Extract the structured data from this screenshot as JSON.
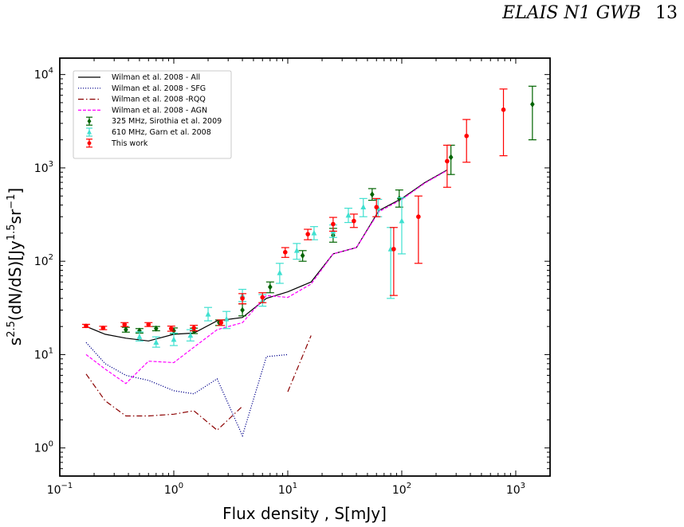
{
  "page": {
    "running_title": "ELAIS N1 GWB",
    "page_number": "13"
  },
  "chart_data": {
    "type": "scatter",
    "x_scale": "log",
    "y_scale": "log",
    "xlim": [
      0.1,
      2000
    ],
    "ylim": [
      0.5,
      15000
    ],
    "xlabel": "Flux density , S[mJy]",
    "ylabel_base": "s",
    "ylabel_exp": "2.5",
    "ylabel_rest": "(dN/dS)[Jy",
    "ylabel_exp2": "1.5",
    "ylabel_rest2": "sr",
    "ylabel_exp3": "−1",
    "ylabel_end": "]",
    "x_ticks": [
      {
        "value": 0.1,
        "base": "10",
        "exp": "−1"
      },
      {
        "value": 1,
        "base": "10",
        "exp": "0"
      },
      {
        "value": 10,
        "base": "10",
        "exp": "1"
      },
      {
        "value": 100,
        "base": "10",
        "exp": "2"
      },
      {
        "value": 1000,
        "base": "10",
        "exp": "3"
      }
    ],
    "y_ticks": [
      {
        "value": 1,
        "base": "10",
        "exp": "0"
      },
      {
        "value": 10,
        "base": "10",
        "exp": "1"
      },
      {
        "value": 100,
        "base": "10",
        "exp": "2"
      },
      {
        "value": 1000,
        "base": "10",
        "exp": "3"
      },
      {
        "value": 10000,
        "base": "10",
        "exp": "4"
      }
    ],
    "legend_position": "top-left",
    "lines": [
      {
        "name": "Wilman et al. 2008 - All",
        "color": "#000000",
        "dash": "",
        "points": [
          [
            0.17,
            20
          ],
          [
            0.25,
            16.5
          ],
          [
            0.38,
            15
          ],
          [
            0.6,
            14
          ],
          [
            1.0,
            16.5
          ],
          [
            1.5,
            17
          ],
          [
            2.4,
            23
          ],
          [
            4.0,
            25
          ],
          [
            6.5,
            40
          ],
          [
            10,
            47
          ],
          [
            16,
            60
          ],
          [
            25,
            120
          ],
          [
            40,
            140
          ],
          [
            63,
            350
          ],
          [
            100,
            470
          ],
          [
            160,
            700
          ],
          [
            250,
            950
          ]
        ]
      },
      {
        "name": "Wilman et al. 2008 - SFG",
        "color": "#00008b",
        "dash": "1.2,1.8",
        "points": [
          [
            0.17,
            13.5
          ],
          [
            0.25,
            8
          ],
          [
            0.38,
            6
          ],
          [
            0.6,
            5.3
          ],
          [
            1.0,
            4.1
          ],
          [
            1.5,
            3.8
          ],
          [
            2.4,
            5.5
          ],
          [
            4.0,
            1.35
          ],
          [
            6.5,
            9.5
          ],
          [
            10,
            10
          ]
        ]
      },
      {
        "name": "Wilman et al. 2008 -RQQ",
        "color": "#8b0000",
        "dash": "7,3,1.5,3",
        "segments": [
          [
            [
              0.17,
              6.2
            ],
            [
              0.25,
              3.2
            ],
            [
              0.38,
              2.2
            ],
            [
              0.6,
              2.2
            ],
            [
              1.0,
              2.3
            ],
            [
              1.5,
              2.5
            ],
            [
              2.4,
              1.55
            ],
            [
              4.0,
              2.8
            ]
          ],
          [
            [
              10,
              4
            ],
            [
              16,
              16
            ]
          ]
        ]
      },
      {
        "name": "Wilman et al. 2008 - AGN",
        "color": "#ff00ff",
        "dash": "4,2",
        "points": [
          [
            0.17,
            10
          ],
          [
            0.25,
            7
          ],
          [
            0.38,
            4.9
          ],
          [
            0.6,
            8.5
          ],
          [
            1.0,
            8.2
          ],
          [
            1.5,
            12
          ],
          [
            2.4,
            18.5
          ],
          [
            4.0,
            22
          ],
          [
            6.5,
            43
          ],
          [
            10,
            41
          ],
          [
            16,
            57
          ],
          [
            25,
            120
          ],
          [
            40,
            140
          ],
          [
            63,
            340
          ],
          [
            100,
            460
          ],
          [
            160,
            690
          ],
          [
            250,
            940
          ]
        ]
      }
    ],
    "series": [
      {
        "name": "325 MHz, Sirothia et al. 2009",
        "color": "#006400",
        "marker": "diamond",
        "points": [
          {
            "x": 0.38,
            "y": 18.5,
            "lo": 17.4,
            "hi": 19.6
          },
          {
            "x": 0.5,
            "y": 18,
            "lo": 17,
            "hi": 19
          },
          {
            "x": 0.7,
            "y": 19,
            "lo": 18,
            "hi": 20
          },
          {
            "x": 1.0,
            "y": 18,
            "lo": 16.8,
            "hi": 19.3
          },
          {
            "x": 1.5,
            "y": 18,
            "lo": 16.8,
            "hi": 19.2
          },
          {
            "x": 2.5,
            "y": 22,
            "lo": 20.5,
            "hi": 23.5
          },
          {
            "x": 4.0,
            "y": 30,
            "lo": 26,
            "hi": 35
          },
          {
            "x": 7.0,
            "y": 53,
            "lo": 46,
            "hi": 60
          },
          {
            "x": 13.5,
            "y": 115,
            "lo": 100,
            "hi": 130
          },
          {
            "x": 25,
            "y": 190,
            "lo": 160,
            "hi": 225
          },
          {
            "x": 55,
            "y": 520,
            "lo": 450,
            "hi": 600
          },
          {
            "x": 95,
            "y": 470,
            "lo": 380,
            "hi": 580
          },
          {
            "x": 270,
            "y": 1300,
            "lo": 850,
            "hi": 1750
          },
          {
            "x": 1400,
            "y": 4800,
            "lo": 2000,
            "hi": 7500
          }
        ]
      },
      {
        "name": "610 MHz, Garn et al. 2008",
        "color": "#40e0d0",
        "marker": "triangle",
        "points": [
          {
            "x": 0.5,
            "y": 15.5,
            "lo": 14,
            "hi": 17.5
          },
          {
            "x": 0.7,
            "y": 13.5,
            "lo": 12,
            "hi": 15.5
          },
          {
            "x": 1.0,
            "y": 14.5,
            "lo": 12.5,
            "hi": 17
          },
          {
            "x": 1.4,
            "y": 16,
            "lo": 14,
            "hi": 18.5
          },
          {
            "x": 2.0,
            "y": 27,
            "lo": 23,
            "hi": 32
          },
          {
            "x": 2.9,
            "y": 24,
            "lo": 19,
            "hi": 29
          },
          {
            "x": 4.0,
            "y": 43,
            "lo": 37,
            "hi": 50
          },
          {
            "x": 6.0,
            "y": 38,
            "lo": 33,
            "hi": 44
          },
          {
            "x": 8.5,
            "y": 75,
            "lo": 58,
            "hi": 95
          },
          {
            "x": 12,
            "y": 130,
            "lo": 105,
            "hi": 155
          },
          {
            "x": 17,
            "y": 200,
            "lo": 170,
            "hi": 235
          },
          {
            "x": 25,
            "y": 210,
            "lo": 180,
            "hi": 245
          },
          {
            "x": 34,
            "y": 310,
            "lo": 260,
            "hi": 370
          },
          {
            "x": 46,
            "y": 380,
            "lo": 300,
            "hi": 470
          },
          {
            "x": 62,
            "y": 370,
            "lo": 300,
            "hi": 460
          },
          {
            "x": 80,
            "y": 135,
            "lo": 40,
            "hi": 230
          },
          {
            "x": 100,
            "y": 270,
            "lo": 120,
            "hi": 480
          }
        ]
      },
      {
        "name": "This work",
        "color": "#ff0000",
        "marker": "circle",
        "points": [
          {
            "x": 0.17,
            "y": 20.3,
            "lo": 19.5,
            "hi": 21.1
          },
          {
            "x": 0.24,
            "y": 19.3,
            "lo": 18.5,
            "hi": 20.1
          },
          {
            "x": 0.37,
            "y": 21,
            "lo": 20,
            "hi": 22
          },
          {
            "x": 0.6,
            "y": 21,
            "lo": 20,
            "hi": 22
          },
          {
            "x": 0.95,
            "y": 19,
            "lo": 17.8,
            "hi": 20.2
          },
          {
            "x": 1.5,
            "y": 19.3,
            "lo": 18,
            "hi": 20.6
          },
          {
            "x": 2.6,
            "y": 22,
            "lo": 20.5,
            "hi": 23.5
          },
          {
            "x": 4.0,
            "y": 40,
            "lo": 35,
            "hi": 45
          },
          {
            "x": 6.0,
            "y": 41,
            "lo": 36,
            "hi": 46
          },
          {
            "x": 9.5,
            "y": 125,
            "lo": 110,
            "hi": 140
          },
          {
            "x": 15,
            "y": 195,
            "lo": 170,
            "hi": 220
          },
          {
            "x": 25,
            "y": 250,
            "lo": 210,
            "hi": 295
          },
          {
            "x": 38,
            "y": 270,
            "lo": 230,
            "hi": 320
          },
          {
            "x": 60,
            "y": 380,
            "lo": 300,
            "hi": 470
          },
          {
            "x": 85,
            "y": 135,
            "lo": 43,
            "hi": 230
          },
          {
            "x": 140,
            "y": 300,
            "lo": 95,
            "hi": 500
          },
          {
            "x": 250,
            "y": 1180,
            "lo": 620,
            "hi": 1750
          },
          {
            "x": 370,
            "y": 2200,
            "lo": 1150,
            "hi": 3300
          },
          {
            "x": 780,
            "y": 4200,
            "lo": 1350,
            "hi": 7000
          }
        ]
      }
    ]
  }
}
